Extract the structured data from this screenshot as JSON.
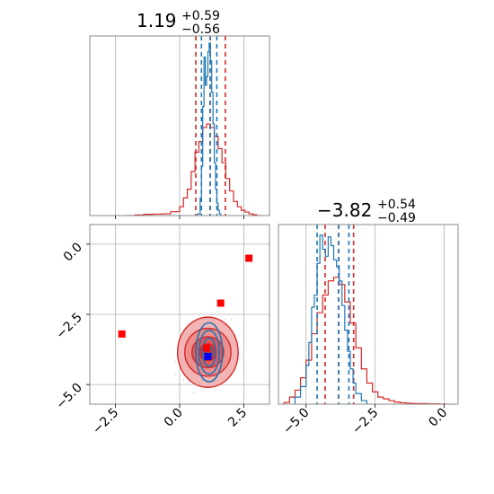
{
  "chart_data": [
    {
      "type": "histogram",
      "panel": "param1-marginal",
      "title": {
        "main": "1.19",
        "upper": "+0.59",
        "lower": "−0.56"
      },
      "xlim": [
        -3.5,
        3.5
      ],
      "grid": true,
      "series": [
        {
          "style": "red",
          "bin_edges": [
            -2.1,
            -1.75,
            -1.4,
            -1.05,
            -0.7,
            -0.35,
            0.0,
            0.15,
            0.3,
            0.45,
            0.6,
            0.75,
            0.9,
            1.05,
            1.2,
            1.35,
            1.5,
            1.65,
            1.8,
            1.95,
            2.1,
            2.25,
            2.4,
            2.55,
            2.7,
            2.85,
            3.0,
            3.2
          ],
          "values": [
            0.0,
            0.003,
            0.007,
            0.008,
            0.01,
            0.022,
            0.05,
            0.1,
            0.15,
            0.25,
            0.36,
            0.42,
            0.5,
            0.52,
            0.5,
            0.45,
            0.38,
            0.3,
            0.21,
            0.14,
            0.08,
            0.05,
            0.03,
            0.02,
            0.01,
            0.005,
            0.0
          ],
          "quantile_lines": [
            0.63,
            1.19,
            1.78
          ]
        },
        {
          "style": "blue",
          "bin_edges": [
            0.7,
            0.8,
            0.85,
            0.9,
            0.95,
            1.0,
            1.05,
            1.1,
            1.15,
            1.2,
            1.25,
            1.3,
            1.35,
            1.4,
            1.45,
            1.5,
            1.55,
            1.6
          ],
          "values": [
            0.01,
            0.1,
            0.28,
            0.62,
            0.9,
            0.74,
            0.79,
            0.93,
            0.98,
            0.88,
            0.7,
            0.52,
            0.3,
            0.15,
            0.07,
            0.03,
            0.01
          ],
          "quantile_lines": [
            0.85,
            1.19,
            1.45
          ]
        }
      ]
    },
    {
      "type": "histogram",
      "panel": "param2-marginal",
      "title": {
        "main": "−3.82",
        "upper": "+0.54",
        "lower": "−0.49"
      },
      "xlim": [
        -6.0,
        0.5
      ],
      "xticks": [
        "−5.0",
        "−2.5",
        "0.0"
      ],
      "grid": true,
      "series": [
        {
          "style": "red",
          "bin_edges": [
            -5.8,
            -5.6,
            -5.4,
            -5.2,
            -5.0,
            -4.8,
            -4.6,
            -4.4,
            -4.2,
            -4.0,
            -3.8,
            -3.6,
            -3.4,
            -3.2,
            -3.0,
            -2.8,
            -2.6,
            -2.4,
            -2.2,
            -2.0,
            -1.8,
            -1.6,
            -1.4,
            -1.2,
            -1.0,
            -0.8,
            -0.6,
            -0.4,
            -0.2,
            0.0,
            0.2
          ],
          "values": [
            0.01,
            0.04,
            0.08,
            0.15,
            0.25,
            0.4,
            0.52,
            0.62,
            0.7,
            0.72,
            0.68,
            0.58,
            0.46,
            0.32,
            0.2,
            0.12,
            0.07,
            0.04,
            0.03,
            0.02,
            0.012,
            0.008,
            0.006,
            0.004,
            0.003,
            0.003,
            0.002,
            0.002,
            0.001,
            0.0
          ],
          "quantile_lines": [
            -4.31,
            -3.82,
            -3.28
          ]
        },
        {
          "style": "blue",
          "bin_edges": [
            -5.4,
            -5.2,
            -5.0,
            -4.9,
            -4.8,
            -4.7,
            -4.6,
            -4.5,
            -4.4,
            -4.3,
            -4.2,
            -4.1,
            -4.0,
            -3.9,
            -3.8,
            -3.7,
            -3.6,
            -3.5,
            -3.4,
            -3.3,
            -3.2,
            -3.0,
            -2.8
          ],
          "values": [
            0.04,
            0.1,
            0.22,
            0.35,
            0.55,
            0.62,
            0.8,
            0.96,
            0.88,
            0.84,
            0.95,
            0.9,
            0.82,
            0.78,
            0.7,
            0.56,
            0.42,
            0.3,
            0.2,
            0.12,
            0.06,
            0.02
          ],
          "quantile_lines": [
            -4.6,
            -3.82,
            -3.45
          ]
        }
      ]
    },
    {
      "type": "scatter",
      "panel": "joint-2d",
      "xlim": [
        -3.5,
        3.5
      ],
      "ylim": [
        -5.7,
        0.7
      ],
      "xticks": [
        "−2.5",
        "0.0",
        "2.5"
      ],
      "yticks": [
        "0.0",
        "−2.5",
        "−5.0"
      ],
      "grid": true,
      "contours_red": {
        "center": [
          1.1,
          -3.85
        ],
        "radii": [
          [
            1.18,
            1.25
          ],
          [
            0.9,
            0.85
          ],
          [
            0.62,
            0.55
          ],
          [
            0.32,
            0.3
          ]
        ]
      },
      "contours_blue": {
        "center": [
          1.15,
          -3.85
        ],
        "radii": [
          [
            0.52,
            1.05
          ],
          [
            0.4,
            0.78
          ],
          [
            0.26,
            0.5
          ],
          [
            0.12,
            0.22
          ]
        ]
      },
      "red_markers": [
        [
          -2.25,
          -3.2
        ],
        [
          1.6,
          -2.1
        ],
        [
          2.7,
          -0.5
        ],
        [
          1.05,
          -3.7
        ]
      ],
      "blue_markers": [
        [
          1.1,
          -4.0
        ]
      ]
    }
  ]
}
